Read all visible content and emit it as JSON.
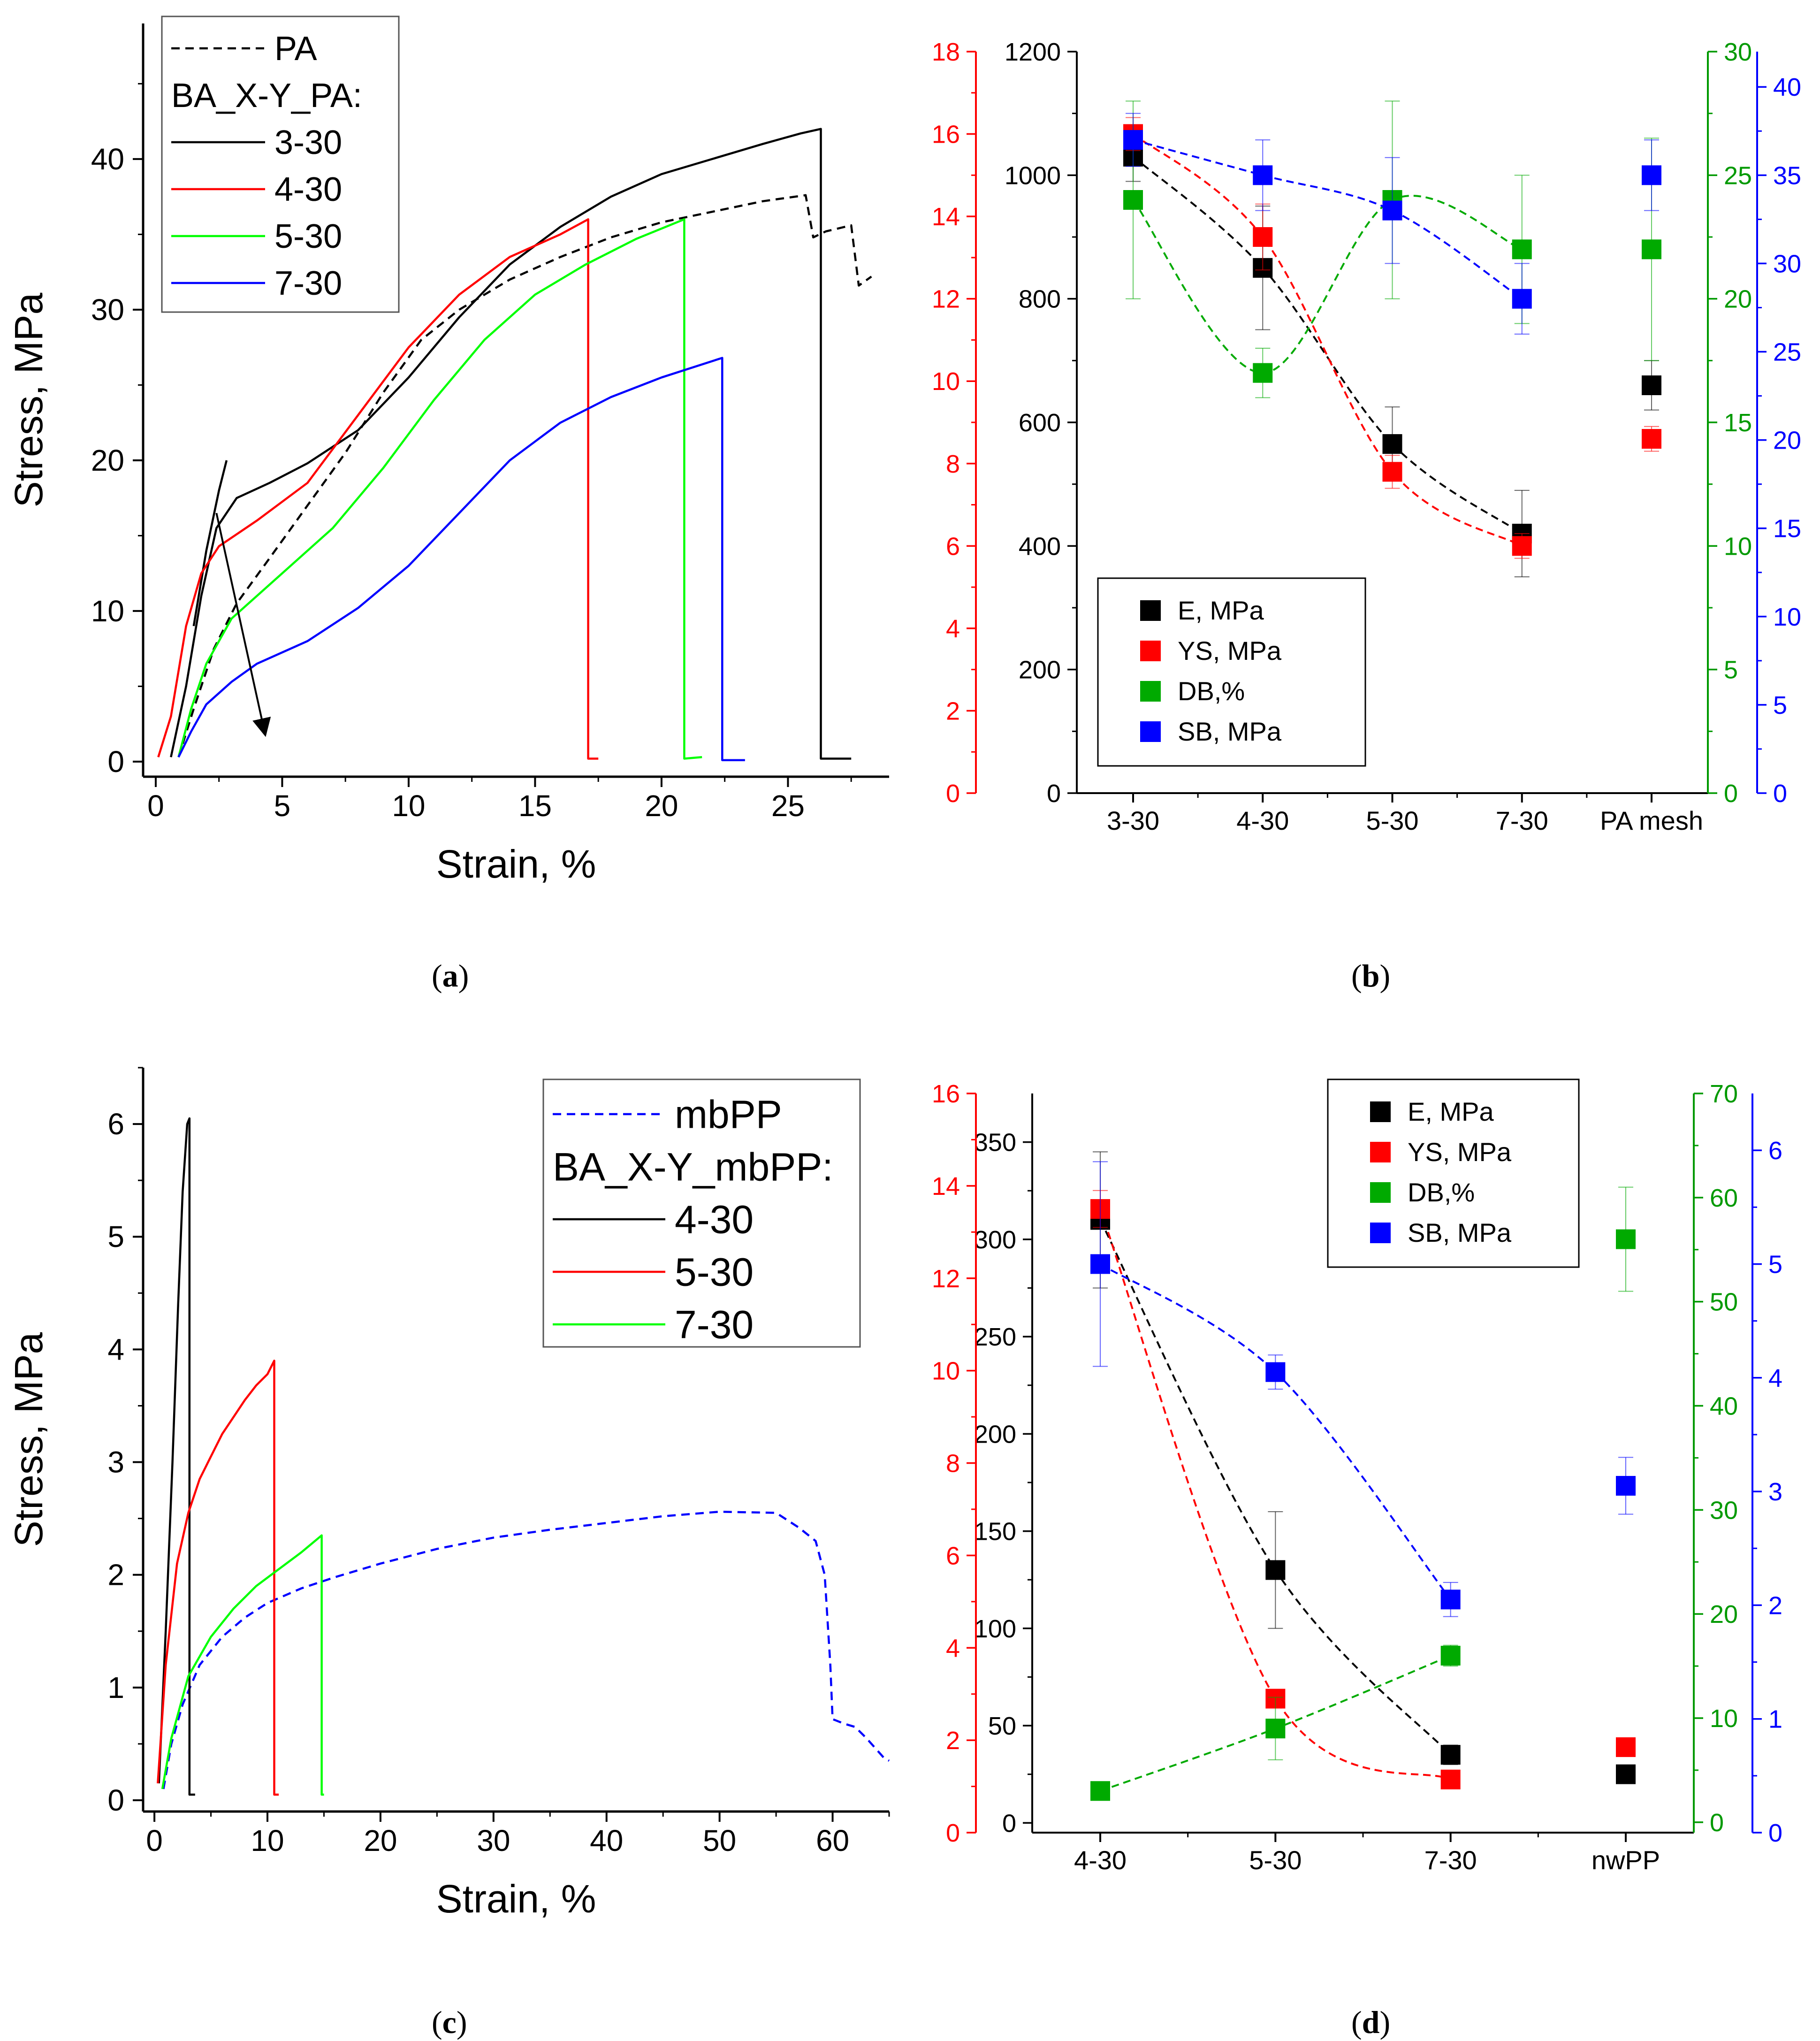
{
  "panels": [
    {
      "id": "a",
      "label": "a"
    },
    {
      "id": "b",
      "label": "b"
    },
    {
      "id": "c",
      "label": "c"
    },
    {
      "id": "d",
      "label": "d"
    }
  ],
  "chart_data": [
    {
      "panel": "a",
      "type": "line",
      "xlabel": "Strain, %",
      "ylabel": "Stress, MPa",
      "xlim": [
        -0.5,
        29
      ],
      "ylim": [
        -1,
        49
      ],
      "xticks": [
        0,
        5,
        10,
        15,
        20,
        25
      ],
      "yticks": [
        0,
        10,
        20,
        30,
        40
      ],
      "grid": false,
      "legend_position": "top-left",
      "legend_header": "BA_X-Y_PA:",
      "series": [
        {
          "name": "PA",
          "color": "#000000",
          "dash": "dashed",
          "x": [
            0.9,
            1.5,
            2.3,
            3.2,
            4.5,
            6,
            7.5,
            9,
            10.5,
            12,
            14,
            16,
            18,
            20,
            22,
            24,
            25.7,
            26,
            26.5,
            27.5,
            27.8,
            28.3
          ],
          "y": [
            0.3,
            3.5,
            7.5,
            10.5,
            13.5,
            17,
            20.5,
            24.5,
            28,
            30,
            32,
            33.5,
            34.8,
            35.8,
            36.5,
            37.2,
            37.6,
            34.8,
            35.2,
            35.6,
            31.6,
            32.2
          ]
        },
        {
          "name": "3-30",
          "color": "#000000",
          "dash": "solid",
          "x": [
            0.6,
            1.2,
            1.8,
            2.4,
            3.2,
            4.5,
            6,
            8,
            10,
            12,
            14,
            16,
            18,
            20,
            22,
            24,
            25.5,
            26.3,
            26.3,
            27.5
          ],
          "y": [
            0.3,
            5,
            11,
            15.5,
            17.5,
            18.5,
            19.8,
            22,
            25.5,
            29.5,
            33,
            35.5,
            37.5,
            39,
            40,
            41,
            41.7,
            42,
            0.2,
            0.2
          ]
        },
        {
          "name": "",
          "color": "#000000",
          "dash": "solid",
          "x": [
            1.5,
            2,
            2.5,
            2.8
          ],
          "y": [
            9,
            14,
            18,
            20
          ]
        },
        {
          "name": "4-30",
          "color": "#ff0000",
          "dash": "solid",
          "x": [
            0.1,
            0.6,
            1.2,
            1.8,
            2.5,
            4,
            6,
            8,
            10,
            12,
            14,
            16,
            17.1,
            17.1,
            17.5
          ],
          "y": [
            0.3,
            3,
            9,
            12.5,
            14.3,
            16,
            18.5,
            23,
            27.5,
            31,
            33.5,
            35,
            36,
            0.2,
            0.2
          ]
        },
        {
          "name": "5-30",
          "color": "#00ff00",
          "dash": "solid",
          "x": [
            0.9,
            1.4,
            2,
            3,
            5,
            7,
            9,
            11,
            13,
            15,
            17,
            19,
            20.9,
            20.9,
            21.6
          ],
          "y": [
            0.3,
            3.5,
            6.5,
            9.5,
            12.5,
            15.5,
            19.5,
            24,
            28,
            31,
            33,
            34.7,
            36,
            0.2,
            0.3
          ]
        },
        {
          "name": "7-30",
          "color": "#0000ff",
          "dash": "solid",
          "x": [
            0.9,
            1.4,
            2,
            3,
            4,
            6,
            8,
            10,
            12,
            14,
            16,
            18,
            20,
            22.4,
            22.4,
            23.3
          ],
          "y": [
            0.3,
            2,
            3.8,
            5.3,
            6.5,
            8,
            10.2,
            13,
            16.5,
            20,
            22.5,
            24.2,
            25.5,
            26.8,
            0.1,
            0.1
          ]
        }
      ],
      "annotations": [
        {
          "type": "arrow",
          "from": [
            2.4,
            16.5
          ],
          "to": [
            4.3,
            2.0
          ],
          "color": "#000000"
        }
      ]
    },
    {
      "panel": "b",
      "type": "scatter",
      "categories": [
        "3-30",
        "4-30",
        "5-30",
        "7-30",
        "PA mesh"
      ],
      "axes": [
        {
          "id": "E",
          "side": "left-inner",
          "color": "#000000",
          "lim": [
            0,
            1200
          ],
          "ticks": [
            0,
            200,
            400,
            600,
            800,
            1000,
            1200
          ]
        },
        {
          "id": "YS",
          "side": "left-outer",
          "color": "#ff0000",
          "lim": [
            0,
            18
          ],
          "ticks": [
            0,
            2,
            4,
            6,
            8,
            10,
            12,
            14,
            16,
            18
          ]
        },
        {
          "id": "DB",
          "side": "right-inner",
          "color": "#009900",
          "lim": [
            0,
            30
          ],
          "ticks": [
            0,
            5,
            10,
            15,
            20,
            25,
            30
          ]
        },
        {
          "id": "SB",
          "side": "right-outer",
          "color": "#0000ff",
          "lim": [
            0,
            42
          ],
          "ticks": [
            0,
            5,
            10,
            15,
            20,
            25,
            30,
            35,
            40
          ]
        }
      ],
      "legend_position": "bottom-left",
      "series": [
        {
          "name": "E, MPa",
          "axis": "E",
          "color": "#000000",
          "values": [
            1030,
            850,
            565,
            420,
            660
          ],
          "errors": [
            40,
            100,
            60,
            70,
            40
          ],
          "fit_through": 4
        },
        {
          "name": "YS, MPa",
          "axis": "YS",
          "color": "#ff0000",
          "values": [
            16.0,
            13.5,
            7.8,
            6.0,
            8.6
          ],
          "errors": [
            0.4,
            0.8,
            0.4,
            0.3,
            0.3
          ],
          "fit_through": 4
        },
        {
          "name": "DB,%",
          "axis": "DB",
          "color": "#00aa00",
          "values": [
            24,
            17,
            24,
            22,
            22
          ],
          "errors": [
            4,
            1,
            4,
            3,
            4.5
          ],
          "fit_through": 4
        },
        {
          "name": "SB, MPa",
          "axis": "SB",
          "color": "#0000ff",
          "values": [
            37,
            35,
            33,
            28,
            35
          ],
          "errors": [
            1.5,
            2.0,
            3.0,
            2.0,
            2.0
          ],
          "fit_through": 4
        }
      ]
    },
    {
      "panel": "c",
      "type": "line",
      "xlabel": "Strain, %",
      "ylabel": "Stress, MPa",
      "xlim": [
        -1,
        65
      ],
      "ylim": [
        -0.1,
        6.5
      ],
      "xticks": [
        0,
        10,
        20,
        30,
        40,
        50,
        60
      ],
      "yticks": [
        0,
        1,
        2,
        3,
        4,
        5,
        6
      ],
      "grid": false,
      "legend_position": "top-right",
      "legend_header": "BA_X-Y_mbPP:",
      "series": [
        {
          "name": "mbPP",
          "color": "#0000ff",
          "dash": "dashed",
          "x": [
            0.8,
            1.5,
            2.5,
            4,
            6,
            8,
            10,
            13,
            16,
            20,
            25,
            30,
            35,
            40,
            45,
            50,
            55,
            57,
            58.5,
            59.3,
            59.8,
            60,
            61,
            62,
            63,
            64.5,
            65
          ],
          "y": [
            0.1,
            0.5,
            0.85,
            1.2,
            1.45,
            1.62,
            1.75,
            1.88,
            1.98,
            2.1,
            2.23,
            2.33,
            2.4,
            2.46,
            2.52,
            2.56,
            2.55,
            2.42,
            2.3,
            2.0,
            1.2,
            0.72,
            0.68,
            0.65,
            0.55,
            0.38,
            0.35
          ]
        },
        {
          "name": "4-30",
          "color": "#000000",
          "dash": "solid",
          "x": [
            0.4,
            1.0,
            1.6,
            2.1,
            2.5,
            2.9,
            3.1,
            3.1,
            3.3,
            3.6
          ],
          "y": [
            0.15,
            1.5,
            3.0,
            4.4,
            5.4,
            6.0,
            6.05,
            0.05,
            0.05,
            0.05
          ]
        },
        {
          "name": "5-30",
          "color": "#ff0000",
          "dash": "solid",
          "x": [
            0.3,
            1,
            2,
            3,
            4,
            5,
            6,
            7,
            8,
            9,
            10,
            10.6,
            10.6,
            11.0
          ],
          "y": [
            0.15,
            1.2,
            2.1,
            2.55,
            2.85,
            3.05,
            3.25,
            3.4,
            3.55,
            3.68,
            3.78,
            3.9,
            0.05,
            0.05
          ]
        },
        {
          "name": "7-30",
          "color": "#00ff00",
          "dash": "solid",
          "x": [
            0.7,
            1.5,
            3,
            5,
            7,
            9,
            11,
            13,
            14.8,
            14.8,
            15.0
          ],
          "y": [
            0.1,
            0.55,
            1.1,
            1.45,
            1.7,
            1.9,
            2.05,
            2.2,
            2.35,
            0.05,
            0.05
          ]
        }
      ]
    },
    {
      "panel": "d",
      "type": "scatter",
      "categories": [
        "4-30",
        "5-30",
        "7-30",
        "nwPP"
      ],
      "axes": [
        {
          "id": "E",
          "side": "left-inner",
          "color": "#000000",
          "lim": [
            -5,
            375
          ],
          "ticks": [
            0,
            50,
            100,
            150,
            200,
            250,
            300,
            350
          ]
        },
        {
          "id": "YS",
          "side": "left-outer",
          "color": "#ff0000",
          "lim": [
            0,
            16
          ],
          "ticks": [
            0,
            2,
            4,
            6,
            8,
            10,
            12,
            14,
            16
          ]
        },
        {
          "id": "DB",
          "side": "right-inner",
          "color": "#009900",
          "lim": [
            -1,
            70
          ],
          "ticks": [
            0,
            10,
            20,
            30,
            40,
            50,
            60,
            70
          ]
        },
        {
          "id": "SB",
          "side": "right-outer",
          "color": "#0000ff",
          "lim": [
            0,
            6.5
          ],
          "ticks": [
            0,
            1,
            2,
            3,
            4,
            5,
            6
          ]
        }
      ],
      "legend_position": "top-center",
      "series": [
        {
          "name": "E, MPa",
          "axis": "E",
          "color": "#000000",
          "values": [
            310,
            130,
            35,
            25
          ],
          "errors": [
            35,
            30,
            5,
            2
          ],
          "fit_through": 3
        },
        {
          "name": "YS, MPa",
          "axis": "YS",
          "color": "#ff0000",
          "values": [
            13.5,
            2.9,
            1.15,
            1.85
          ],
          "errors": [
            0.4,
            0.2,
            0.1,
            0.1
          ],
          "fit_through": 3
        },
        {
          "name": "DB,%",
          "axis": "DB",
          "color": "#00aa00",
          "values": [
            3,
            9,
            16,
            56
          ],
          "errors": [
            0.8,
            3,
            1,
            5
          ],
          "fit_through": 3
        },
        {
          "name": "SB, MPa",
          "axis": "SB",
          "color": "#0000ff",
          "values": [
            5.0,
            4.05,
            2.05,
            3.05
          ],
          "errors": [
            0.9,
            0.15,
            0.15,
            0.25
          ],
          "fit_through": 3
        }
      ]
    }
  ]
}
